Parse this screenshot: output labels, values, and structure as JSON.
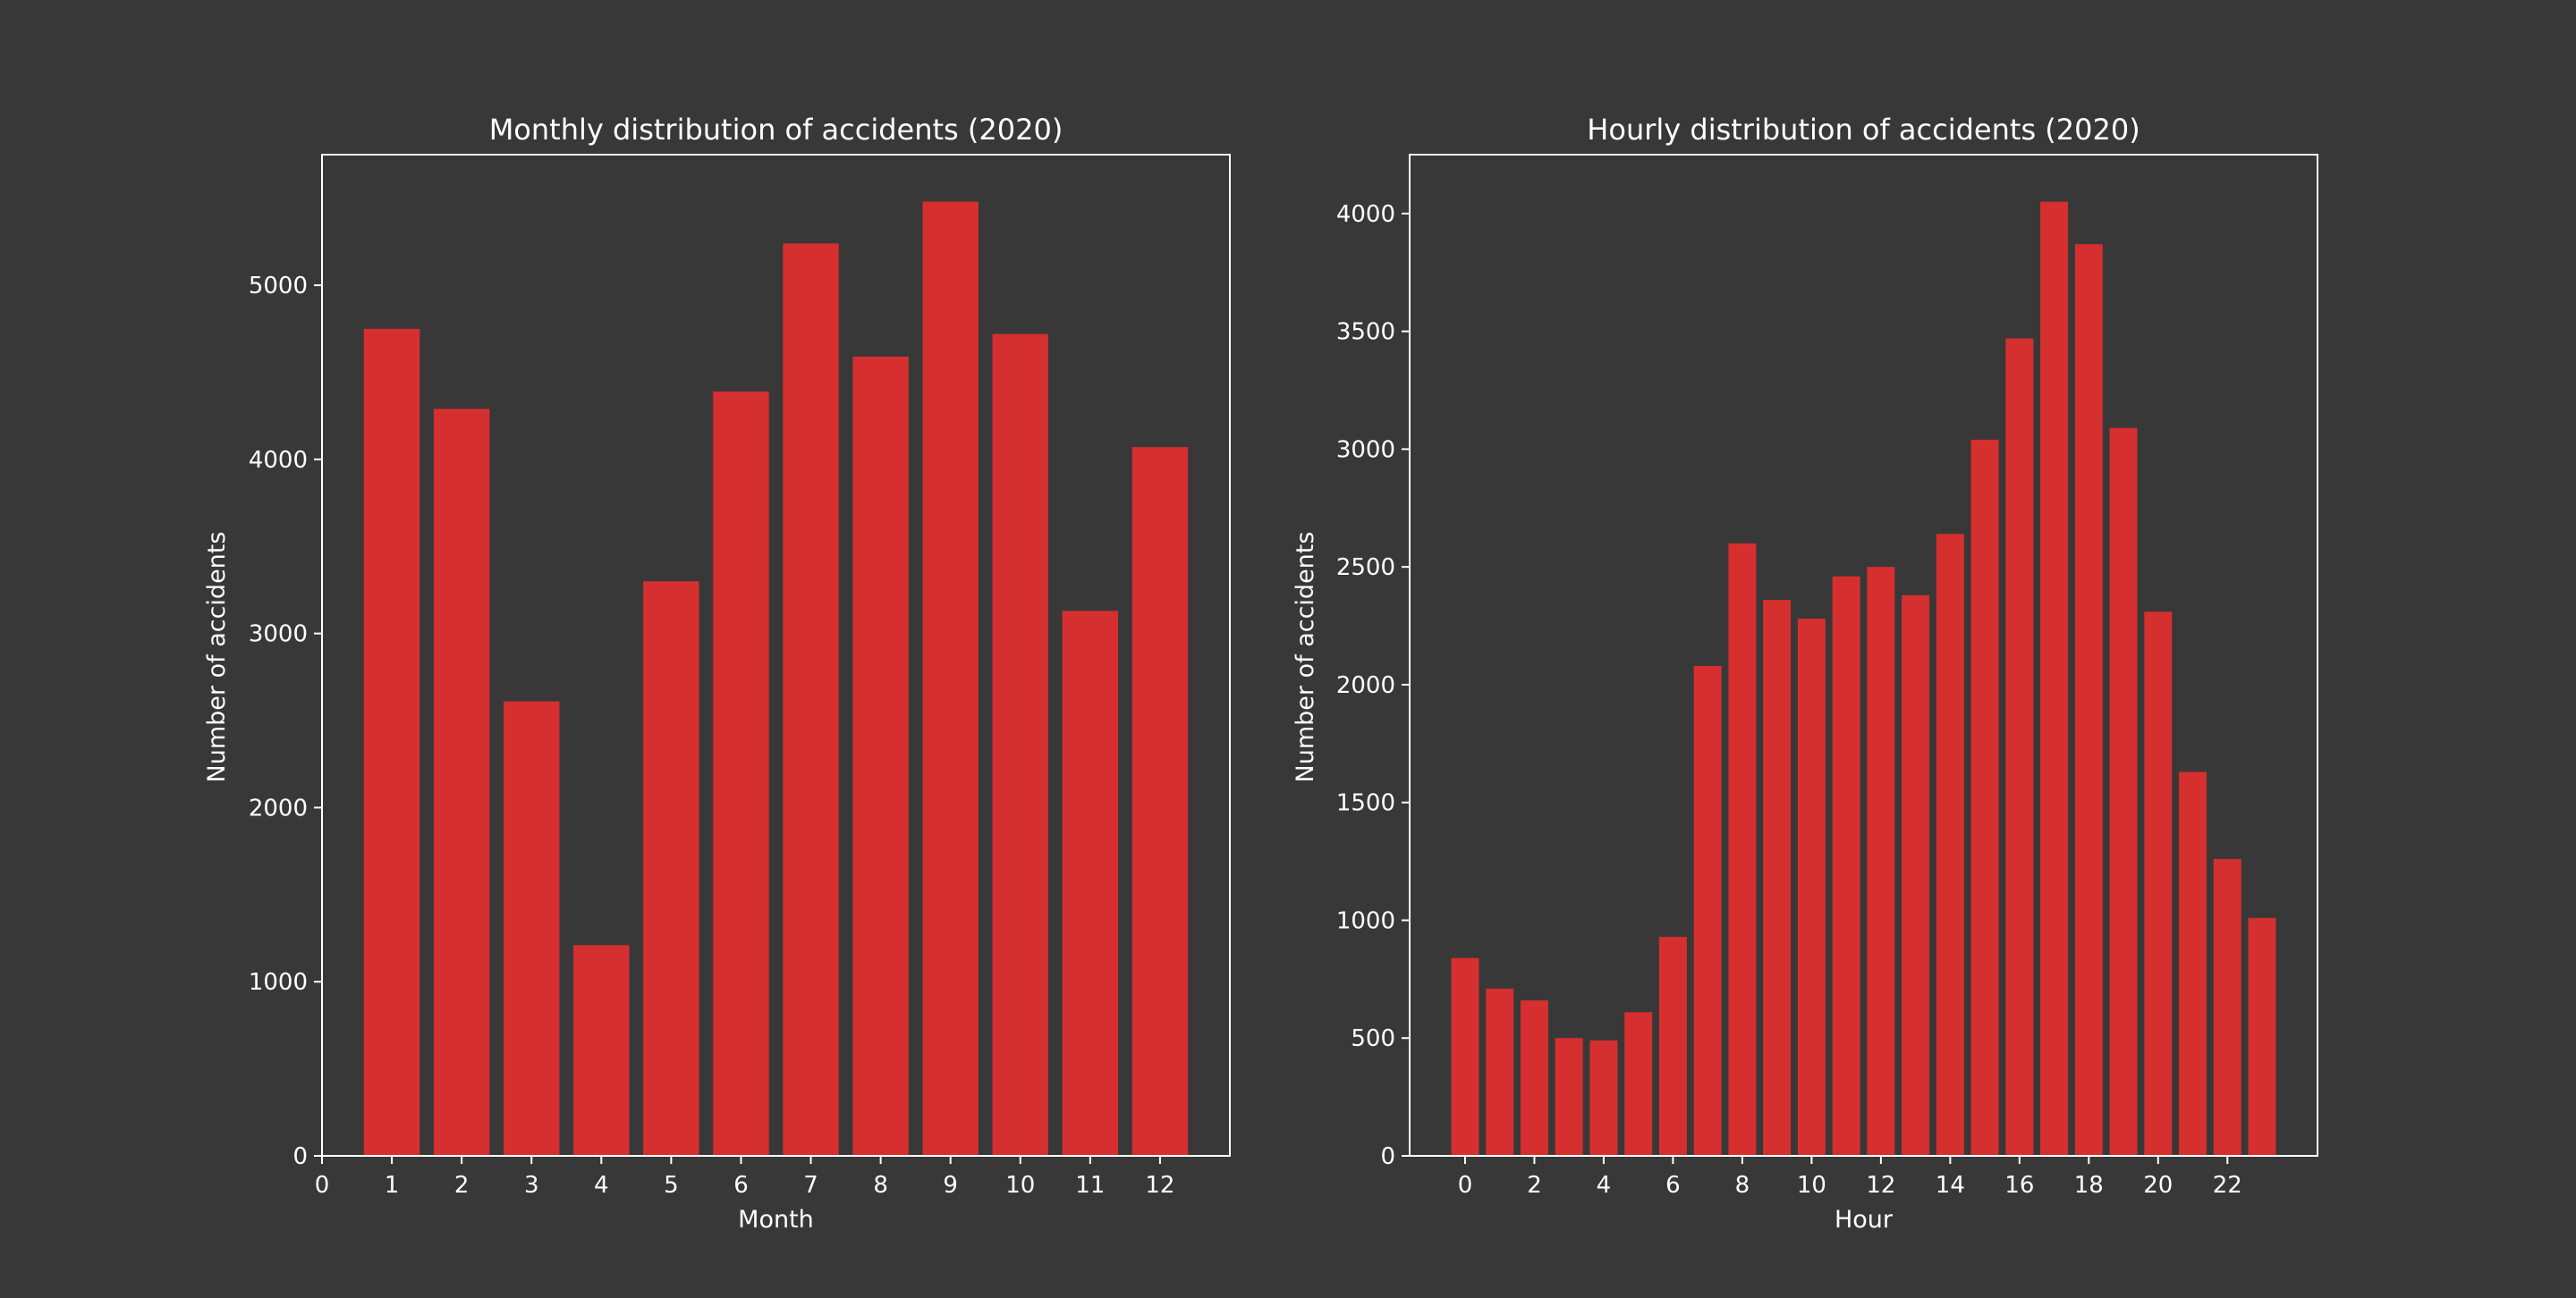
{
  "style": {
    "background": "#383838",
    "bar_color": "#d62f2f",
    "axis_color": "#ffffff",
    "text_color": "#ffffff"
  },
  "chart_data": [
    {
      "type": "bar",
      "title": "Monthly distribution of accidents (2020)",
      "xlabel": "Month",
      "ylabel": "Number of accidents",
      "categories": [
        1,
        2,
        3,
        4,
        5,
        6,
        7,
        8,
        9,
        10,
        11,
        12
      ],
      "values": [
        4750,
        4290,
        2610,
        1210,
        3300,
        4390,
        5240,
        4590,
        5480,
        4720,
        3130,
        4070
      ],
      "xlim": [
        0,
        13
      ],
      "ylim": [
        0,
        5750
      ],
      "xticks": [
        0,
        1,
        2,
        3,
        4,
        5,
        6,
        7,
        8,
        9,
        10,
        11,
        12
      ],
      "yticks": [
        0,
        1000,
        2000,
        3000,
        4000,
        5000
      ],
      "grid": false,
      "legend": "none"
    },
    {
      "type": "bar",
      "title": "Hourly distribution of accidents (2020)",
      "xlabel": "Hour",
      "ylabel": "Number of accidents",
      "categories": [
        0,
        1,
        2,
        3,
        4,
        5,
        6,
        7,
        8,
        9,
        10,
        11,
        12,
        13,
        14,
        15,
        16,
        17,
        18,
        19,
        20,
        21,
        22,
        23
      ],
      "values": [
        840,
        710,
        660,
        500,
        490,
        610,
        930,
        2080,
        2600,
        2360,
        2280,
        2460,
        2500,
        2380,
        2640,
        3040,
        3470,
        4050,
        3870,
        3090,
        2310,
        1630,
        1260,
        1010
      ],
      "xlim": [
        -1.6,
        24.6
      ],
      "ylim": [
        0,
        4250
      ],
      "xticks": [
        0,
        2,
        4,
        6,
        8,
        10,
        12,
        14,
        16,
        18,
        20,
        22
      ],
      "yticks": [
        0,
        500,
        1000,
        1500,
        2000,
        2500,
        3000,
        3500,
        4000
      ],
      "grid": false,
      "legend": "none"
    }
  ]
}
